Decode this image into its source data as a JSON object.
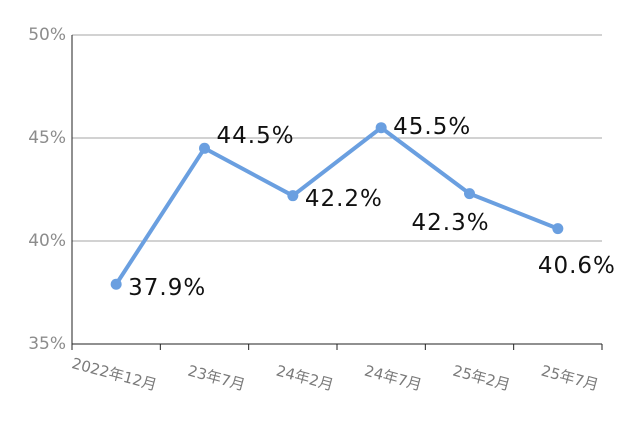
{
  "chart_data": {
    "type": "line",
    "categories": [
      "2022年12月",
      "23年7月",
      "24年2月",
      "24年7月",
      "25年2月",
      "25年7月"
    ],
    "series": [
      {
        "color": "#6a9fe0",
        "values": [
          37.9,
          44.5,
          42.2,
          45.5,
          42.3,
          40.6
        ],
        "value_labels": [
          "37.9%",
          "44.5%",
          "42.2%",
          "45.5%",
          "42.3%",
          "40.6%"
        ]
      }
    ],
    "ylim": [
      35,
      50
    ],
    "yticks": [
      {
        "value": 35,
        "label": "35%"
      },
      {
        "value": 40,
        "label": "40%"
      },
      {
        "value": 45,
        "label": "45%"
      },
      {
        "value": 50,
        "label": "50%"
      }
    ],
    "grid": true
  }
}
